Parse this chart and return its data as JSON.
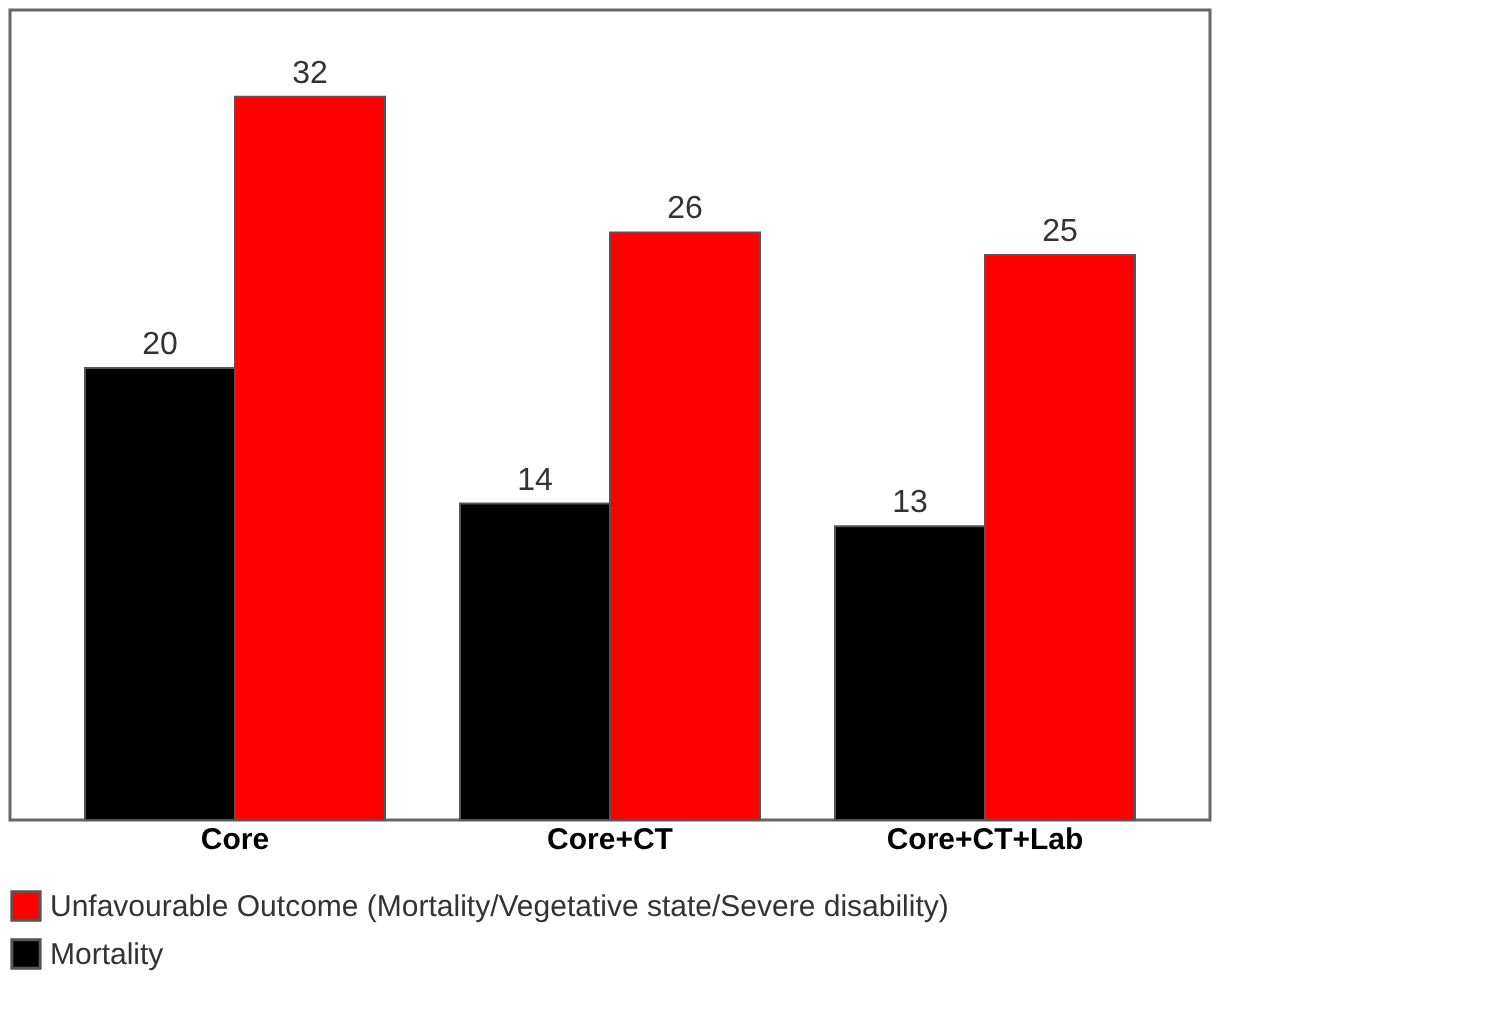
{
  "chart_data": {
    "type": "bar",
    "categories": [
      "Core",
      "Core+CT",
      "Core+CT+Lab"
    ],
    "data_labels": true,
    "legend": "bottom",
    "grid": false,
    "series": [
      {
        "name": "Mortality",
        "color": "#000000",
        "values": [
          20,
          14,
          13
        ]
      },
      {
        "name": "Unfavourable Outcome (Mortality/Vegetative state/Severe disability)",
        "color": "#ff0000",
        "values": [
          32,
          26,
          25
        ]
      }
    ]
  }
}
